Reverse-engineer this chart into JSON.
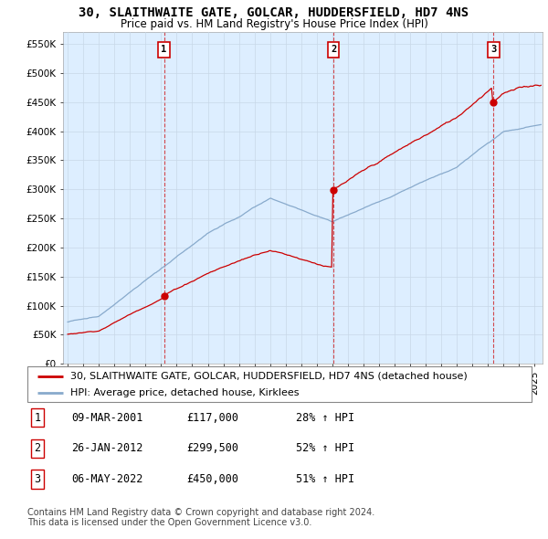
{
  "title": "30, SLAITHWAITE GATE, GOLCAR, HUDDERSFIELD, HD7 4NS",
  "subtitle": "Price paid vs. HM Land Registry's House Price Index (HPI)",
  "ylabel_vals": [
    0,
    50000,
    100000,
    150000,
    200000,
    250000,
    300000,
    350000,
    400000,
    450000,
    500000,
    550000
  ],
  "ylabel_labels": [
    "£0",
    "£50K",
    "£100K",
    "£150K",
    "£200K",
    "£250K",
    "£300K",
    "£350K",
    "£400K",
    "£450K",
    "£500K",
    "£550K"
  ],
  "ylim": [
    0,
    570000
  ],
  "xlim_start": 1994.7,
  "xlim_end": 2025.5,
  "sale_dates": [
    2001.19,
    2012.07,
    2022.35
  ],
  "sale_prices": [
    117000,
    299500,
    450000
  ],
  "sale_labels": [
    "1",
    "2",
    "3"
  ],
  "sale_date_strs": [
    "09-MAR-2001",
    "26-JAN-2012",
    "06-MAY-2022"
  ],
  "sale_price_strs": [
    "£117,000",
    "£299,500",
    "£450,000"
  ],
  "sale_pct_strs": [
    "28% ↑ HPI",
    "52% ↑ HPI",
    "51% ↑ HPI"
  ],
  "red_color": "#cc0000",
  "blue_color": "#88aacc",
  "shade_color": "#ddeeff",
  "legend_label_red": "30, SLAITHWAITE GATE, GOLCAR, HUDDERSFIELD, HD7 4NS (detached house)",
  "legend_label_blue": "HPI: Average price, detached house, Kirklees",
  "footnote1": "Contains HM Land Registry data © Crown copyright and database right 2024.",
  "footnote2": "This data is licensed under the Open Government Licence v3.0.",
  "title_fontsize": 10,
  "subtitle_fontsize": 8.5,
  "axis_fontsize": 7.5,
  "legend_fontsize": 8,
  "table_fontsize": 8.5,
  "footnote_fontsize": 7
}
